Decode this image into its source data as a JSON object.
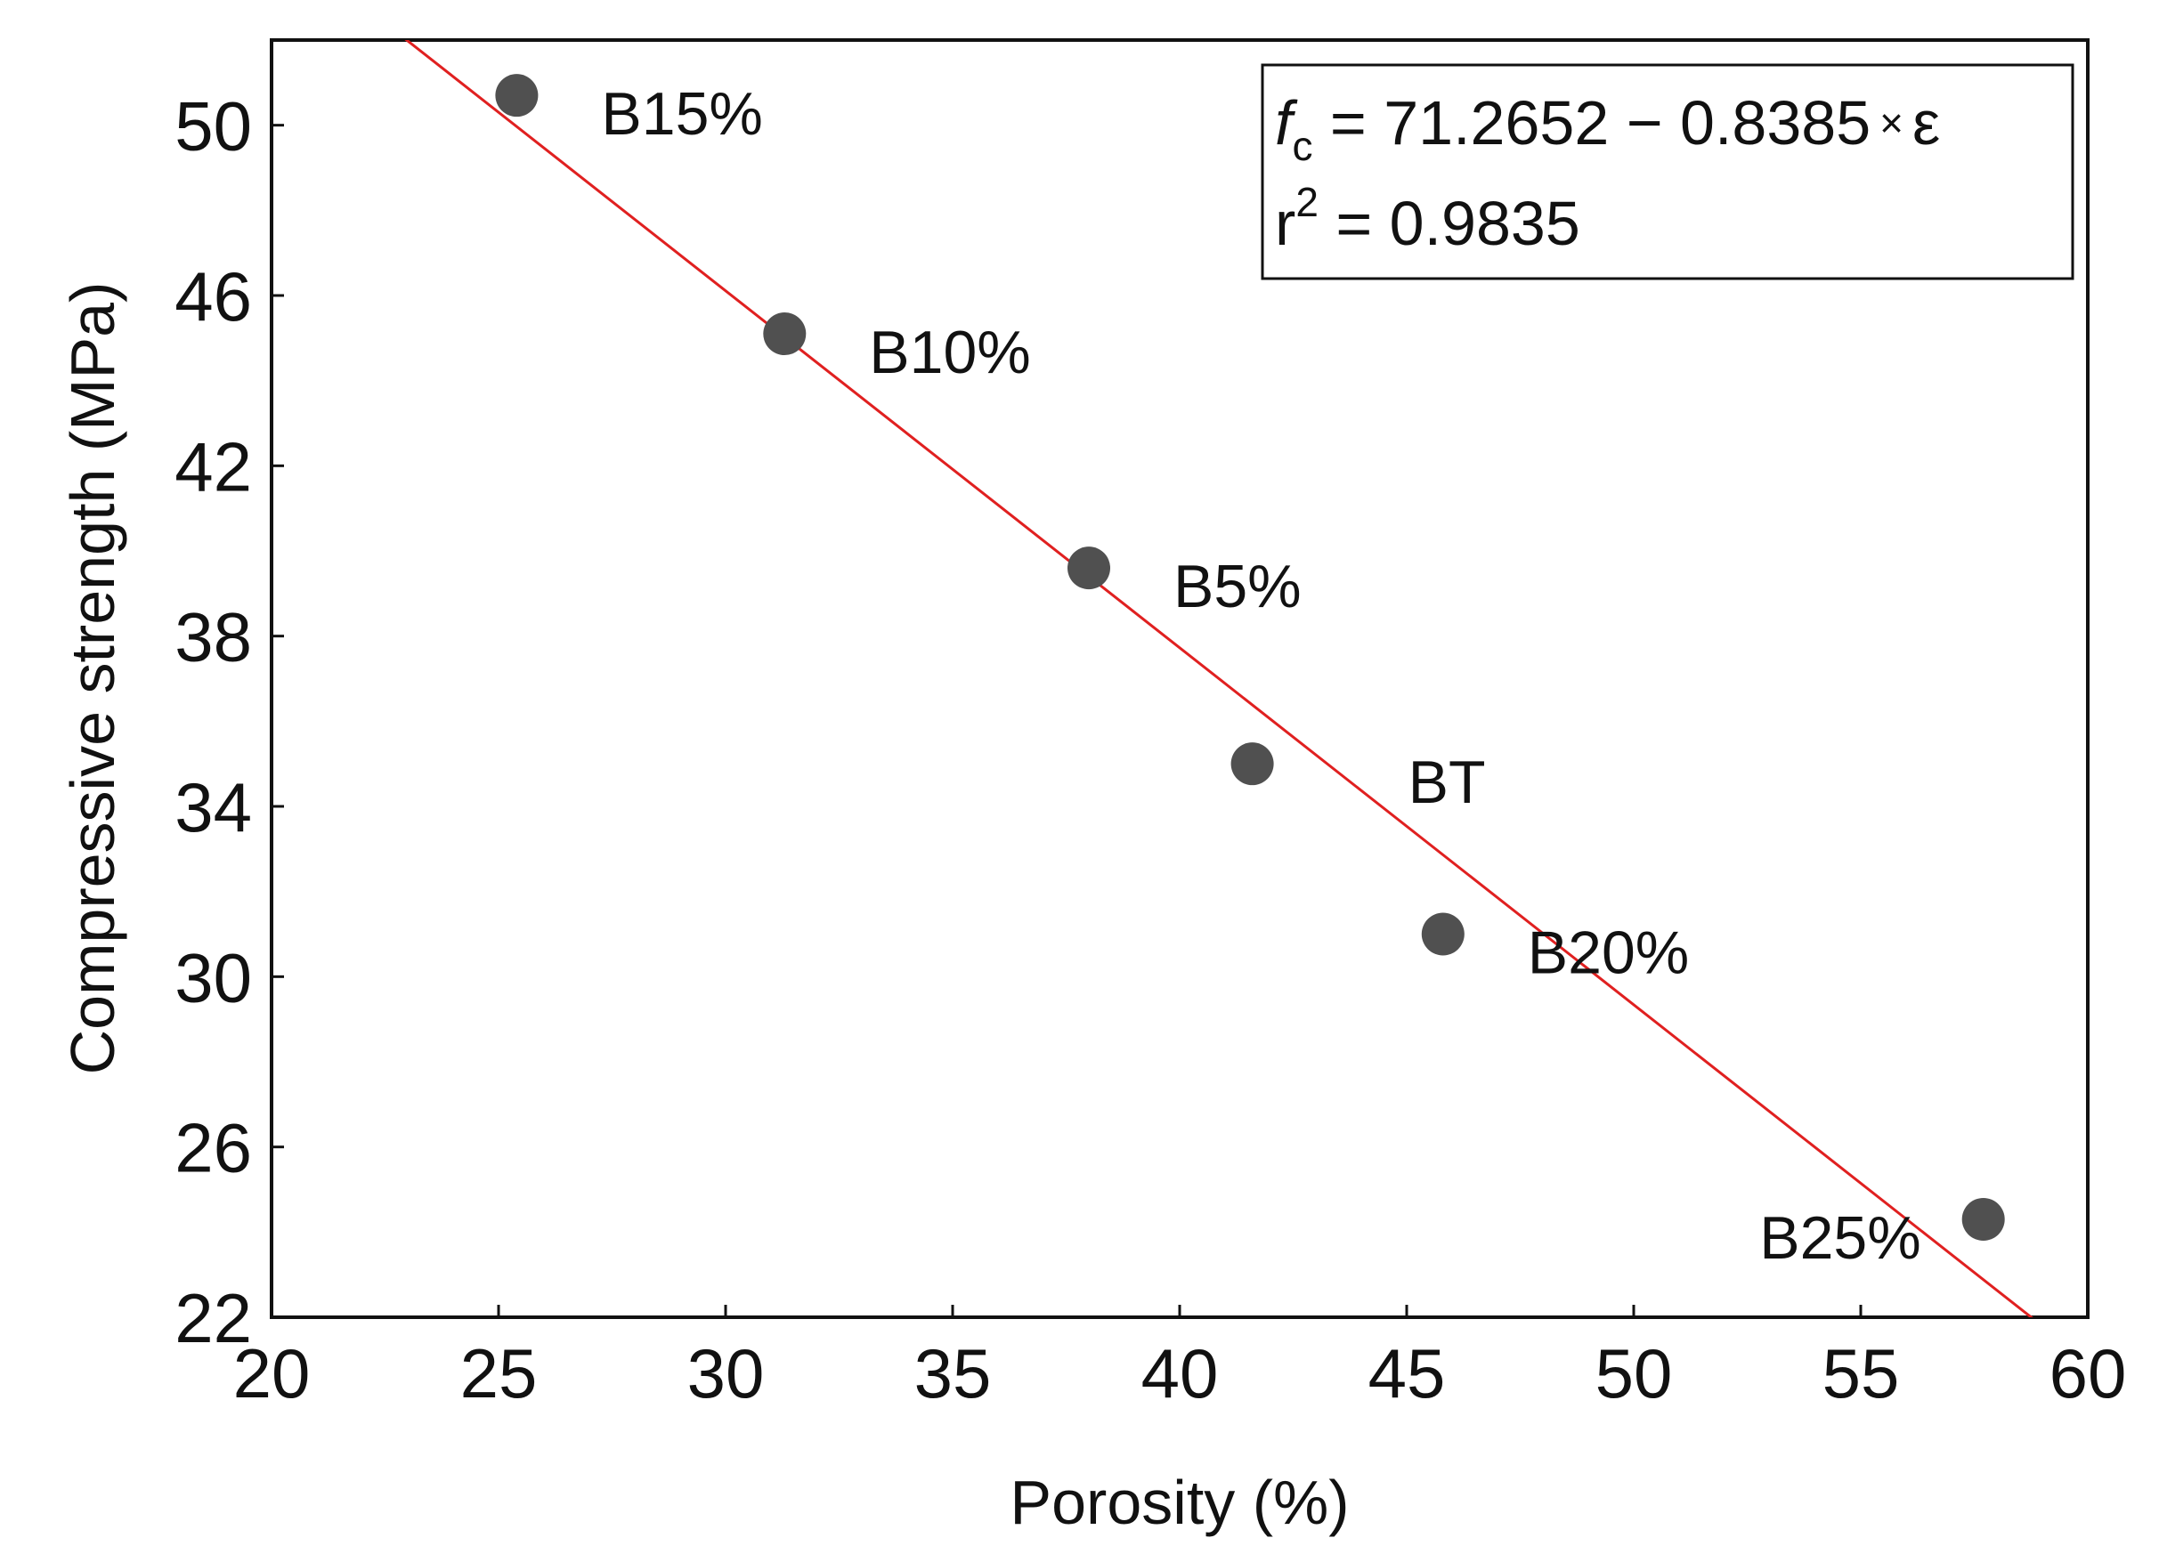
{
  "chart_data": {
    "type": "scatter",
    "title": "",
    "xlabel": "Porosity (%)",
    "ylabel": "Compressive strength (MPa)",
    "xlim": [
      20,
      60
    ],
    "ylim": [
      22,
      52
    ],
    "xticks": [
      20,
      25,
      30,
      35,
      40,
      45,
      50,
      55,
      60
    ],
    "yticks": [
      22,
      26,
      30,
      34,
      38,
      42,
      46,
      50
    ],
    "grid": false,
    "points": [
      {
        "label": "B15%",
        "x": 25.4,
        "y": 50.7
      },
      {
        "label": "B10%",
        "x": 31.3,
        "y": 45.1
      },
      {
        "label": "B5%",
        "x": 38.0,
        "y": 39.6
      },
      {
        "label": "BT",
        "x": 41.6,
        "y": 35.0
      },
      {
        "label": "B20%",
        "x": 45.8,
        "y": 31.0
      },
      {
        "label": "B25%",
        "x": 57.7,
        "y": 24.3
      }
    ],
    "fit_line": {
      "intercept": 71.2652,
      "slope": -0.8385,
      "color": "#e02020"
    },
    "annotation": {
      "eq_symbol": "f",
      "eq_subscript": "c",
      "eq_rest": " = 71.2652 − 0.8385",
      "eq_times": "×",
      "eq_var": "ε",
      "r2_base": "r",
      "r2_sup": "2",
      "r2_rest": " = 0.9835"
    },
    "colors": {
      "marker": "#505050",
      "axis": "#111111"
    }
  }
}
